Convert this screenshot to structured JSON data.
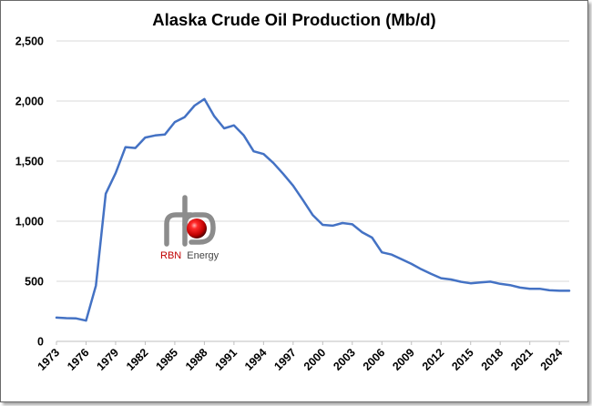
{
  "chart_data": {
    "type": "line",
    "title": "Alaska Crude Oil Production  (Mb/d)",
    "xlabel": "",
    "ylabel": "",
    "ylim": [
      0,
      2500
    ],
    "xlim": [
      1973,
      2025
    ],
    "y_ticks": [
      0,
      500,
      1000,
      1500,
      2000,
      2500
    ],
    "y_tick_labels": [
      "0",
      "500",
      "1,000",
      "1,500",
      "2,000",
      "2,500"
    ],
    "x_ticks": [
      1973,
      1976,
      1979,
      1982,
      1985,
      1988,
      1991,
      1994,
      1997,
      2000,
      2003,
      2006,
      2009,
      2012,
      2015,
      2018,
      2021,
      2024
    ],
    "grid": "horizontal",
    "line_color": "#4472C4",
    "series": [
      {
        "x": [
          1973,
          1974,
          1975,
          1976,
          1977,
          1978,
          1979,
          1980,
          1981,
          1982,
          1983,
          1984,
          1985,
          1986,
          1987,
          1988,
          1989,
          1990,
          1991,
          1992,
          1993,
          1994,
          1995,
          1996,
          1997,
          1998,
          1999,
          2000,
          2001,
          2002,
          2003,
          2004,
          2005,
          2006,
          2007,
          2008,
          2009,
          2010,
          2011,
          2012,
          2013,
          2014,
          2015,
          2016,
          2017,
          2018,
          2019,
          2020,
          2021,
          2022,
          2023,
          2024,
          2025
        ],
        "values": [
          198,
          193,
          191,
          173,
          464,
          1229,
          1401,
          1617,
          1609,
          1696,
          1714,
          1722,
          1825,
          1867,
          1962,
          2017,
          1874,
          1773,
          1798,
          1714,
          1582,
          1559,
          1484,
          1393,
          1296,
          1175,
          1050,
          970,
          963,
          985,
          974,
          908,
          864,
          741,
          722,
          683,
          645,
          600,
          561,
          526,
          515,
          496,
          483,
          490,
          497,
          479,
          468,
          448,
          437,
          438,
          425,
          421,
          421
        ]
      }
    ]
  },
  "logo": {
    "brand": "RBN",
    "suffix": "Energy",
    "brand_color": "#C00000"
  }
}
